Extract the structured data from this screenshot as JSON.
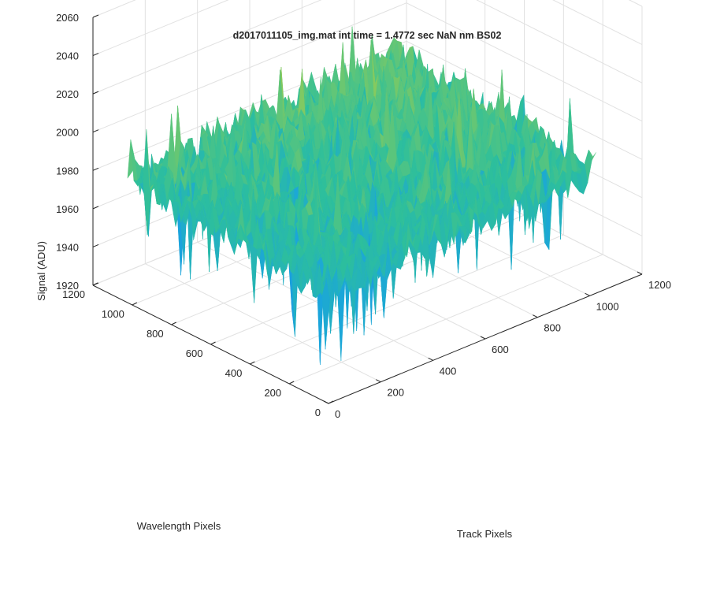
{
  "chart_data": {
    "type": "surface3d",
    "title": "d2017011105_img.mat int time = 1.4772 sec  NaN nm BS02",
    "xlabel": "Track Pixels",
    "ylabel": "Wavelength Pixels",
    "zlabel": "Signal (ADU)",
    "xlim": [
      0,
      1200
    ],
    "ylim": [
      0,
      1200
    ],
    "zlim": [
      1920,
      2060
    ],
    "xticks": [
      0,
      200,
      400,
      600,
      800,
      1000,
      1200
    ],
    "yticks": [
      0,
      200,
      400,
      600,
      800,
      1000,
      1200
    ],
    "zticks": [
      1920,
      1940,
      1960,
      1980,
      2000,
      2020,
      2040,
      2060
    ],
    "grid": true,
    "colormap": "parula",
    "surface_extent": {
      "x": [
        0,
        1024
      ],
      "y": [
        0,
        1024
      ]
    },
    "surface_summary": {
      "mean": 1985,
      "min_approx": 1925,
      "max_approx": 2045,
      "trend": "signal higher toward the back corner (high wavelength pixels, high track pixels), lower toward the front corner"
    }
  },
  "colors": {
    "axis": "#262626",
    "grid": "#e1e1e1",
    "colormap_stops": [
      "#3e26a8",
      "#2a6ff0",
      "#1aa5dc",
      "#2dbf9c",
      "#8ccb5a",
      "#e3c03a",
      "#f9fb15"
    ]
  }
}
